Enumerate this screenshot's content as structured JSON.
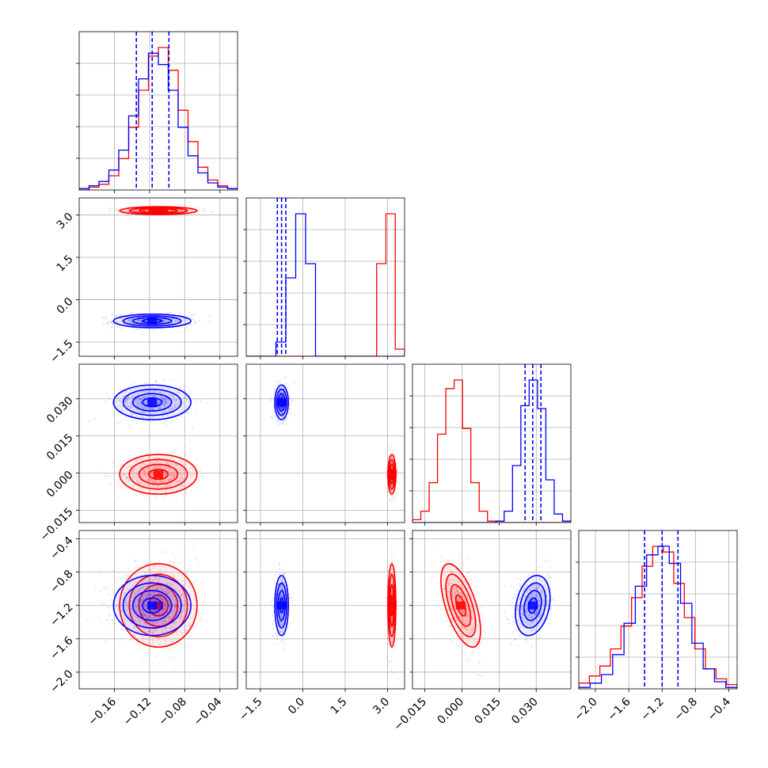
{
  "chart_data": {
    "type": "corner",
    "grid": true,
    "colors": {
      "series_a": "#0000ff",
      "series_b": "#ff0000",
      "axis": "#000000",
      "grid": "#b0b0b0"
    },
    "parameters": [
      {
        "range": [
          -0.2,
          -0.02
        ],
        "ticks": [
          -0.16,
          -0.12,
          -0.08,
          -0.04
        ],
        "tick_labels": [
          "−0.16",
          "−0.12",
          "−0.08",
          "−0.04"
        ]
      },
      {
        "range": [
          -2.0,
          3.6
        ],
        "ticks": [
          -1.5,
          0.0,
          1.5,
          3.0
        ],
        "tick_labels": [
          "−1.5",
          "0.0",
          "1.5",
          "3.0"
        ]
      },
      {
        "range": [
          -0.02,
          0.044
        ],
        "ticks": [
          -0.015,
          0.0,
          0.015,
          0.03
        ],
        "tick_labels": [
          "−0.015",
          "0.000",
          "0.015",
          "0.030"
        ]
      },
      {
        "range": [
          -2.2,
          -0.3
        ],
        "ticks": [
          -2.0,
          -1.6,
          -1.2,
          -0.8,
          -0.4
        ],
        "tick_labels": [
          "−2.0",
          "−1.6",
          "−1.2",
          "−0.8",
          "−0.4"
        ]
      }
    ],
    "quantiles": [
      [
        -0.135,
        -0.117,
        -0.098
      ],
      [
        -0.9,
        -0.75,
        -0.6
      ],
      [
        0.0255,
        0.0286,
        0.0319
      ],
      [
        -1.41,
        -1.2,
        -1.01
      ]
    ],
    "series": [
      {
        "color": "#0000ff",
        "means": [
          -0.117,
          -0.75,
          0.0286,
          -1.2
        ],
        "sds": [
          0.022,
          0.12,
          0.0035,
          0.18
        ],
        "corr": {
          "2_3": 0.25,
          "1_3": 0.0,
          "0_3": 0.0,
          "0_2": 0.0,
          "0_1": 0.0,
          "1_2": 0.0
        },
        "hist_counts": [
          [
            1,
            3,
            6,
            14,
            28,
            52,
            78,
            96,
            88,
            70,
            44,
            24,
            12,
            5,
            2,
            1
          ],
          [
            0,
            0,
            0,
            10,
            55,
            100,
            65,
            0,
            0,
            0,
            0,
            0,
            0,
            0,
            0,
            0
          ],
          [
            0,
            0,
            0,
            0,
            0,
            0,
            0,
            0,
            0,
            0,
            1,
            8,
            40,
            82,
            100,
            80,
            30,
            6,
            1
          ],
          [
            1,
            4,
            10,
            24,
            46,
            72,
            94,
            100,
            88,
            60,
            32,
            14,
            5,
            1
          ]
        ]
      },
      {
        "color": "#ff0000",
        "means": [
          -0.11,
          3.15,
          -0.0005,
          -1.2
        ],
        "sds": [
          0.022,
          0.07,
          0.004,
          0.25
        ],
        "corr": {
          "2_3": -0.6,
          "1_3": 0.0,
          "0_3": 0.0,
          "0_2": 0.0,
          "0_1": 0.0,
          "1_2": 0.0
        },
        "hist_counts": [
          [
            0,
            2,
            4,
            10,
            22,
            44,
            70,
            94,
            100,
            84,
            56,
            34,
            16,
            7,
            3,
            1
          ],
          [
            0,
            0,
            0,
            0,
            0,
            0,
            0,
            0,
            0,
            0,
            0,
            0,
            0,
            0,
            65,
            100,
            5
          ],
          [
            2,
            8,
            28,
            62,
            94,
            100,
            66,
            28,
            8,
            1,
            0,
            0,
            0,
            0,
            0,
            0,
            0,
            0,
            0
          ],
          [
            4,
            9,
            16,
            28,
            44,
            64,
            86,
            100,
            96,
            74,
            50,
            28,
            14,
            7,
            3
          ]
        ]
      }
    ]
  }
}
